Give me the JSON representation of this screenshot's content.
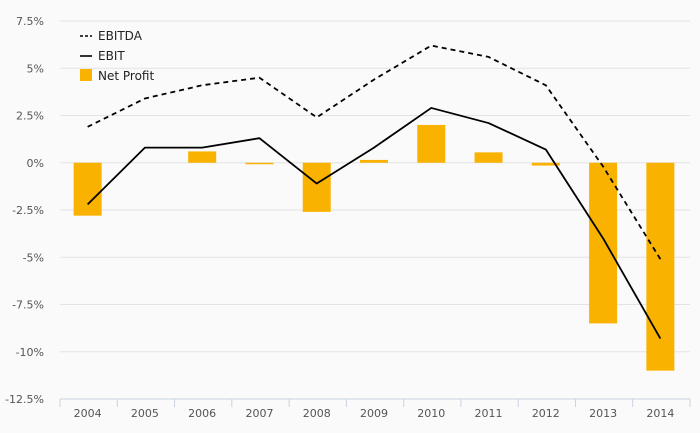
{
  "chart_data": {
    "type": "bar",
    "categories": [
      "2004",
      "2005",
      "2006",
      "2007",
      "2008",
      "2009",
      "2010",
      "2011",
      "2012",
      "2013",
      "2014"
    ],
    "ylim": [
      -12.5,
      7.5
    ],
    "yticks": [
      {
        "value": 7.5,
        "label": "7.5%"
      },
      {
        "value": 5,
        "label": "5%"
      },
      {
        "value": 2.5,
        "label": "2.5%"
      },
      {
        "value": 0,
        "label": "0%"
      },
      {
        "value": -2.5,
        "label": "-2.5%"
      },
      {
        "value": -5,
        "label": "-5%"
      },
      {
        "value": -7.5,
        "label": "-7.5%"
      },
      {
        "value": -10,
        "label": "-10%"
      },
      {
        "value": -12.5,
        "label": "-12.5%"
      }
    ],
    "grid": true,
    "legend_position": "top-left",
    "series": [
      {
        "name": "EBITDA",
        "type": "line",
        "style": "dashed",
        "color": "#000000",
        "values": [
          1.9,
          3.4,
          4.1,
          4.5,
          2.4,
          4.4,
          6.2,
          5.6,
          4.1,
          -0.2,
          -5.1
        ]
      },
      {
        "name": "EBIT",
        "type": "line",
        "style": "solid",
        "color": "#000000",
        "values": [
          -2.2,
          0.8,
          0.8,
          1.3,
          -1.1,
          0.8,
          2.9,
          2.1,
          0.7,
          -4.0,
          -9.3
        ]
      },
      {
        "name": "Net Profit",
        "type": "bar",
        "color": "#f9b200",
        "values": [
          -2.8,
          0,
          0.6,
          -0.05,
          -2.6,
          0.15,
          2.0,
          0.55,
          -0.15,
          -8.5,
          -11.0
        ]
      }
    ]
  }
}
